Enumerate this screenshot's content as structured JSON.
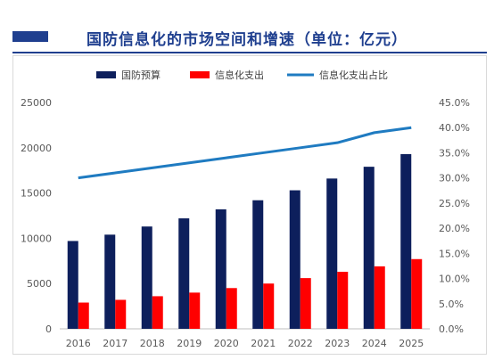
{
  "page": {
    "title": "国防信息化的市场空间和增速（单位：亿元）"
  },
  "colors": {
    "accent": "#1f3f8f",
    "budget_bar": "#0d1f5c",
    "it_bar": "#ff0000",
    "ratio_line": "#1f7bc1"
  },
  "chart_data": {
    "type": "bar",
    "title": "国防信息化的市场空间和增速（单位：亿元）",
    "categories": [
      "2016",
      "2017",
      "2018",
      "2019",
      "2020",
      "2021",
      "2022",
      "2023",
      "2024",
      "2025"
    ],
    "series": [
      {
        "name": "国防预算",
        "type": "bar",
        "axis": "left",
        "values": [
          9700,
          10400,
          11300,
          12200,
          13200,
          14200,
          15300,
          16600,
          17900,
          19300
        ]
      },
      {
        "name": "信息化支出",
        "type": "bar",
        "axis": "left",
        "values": [
          2900,
          3200,
          3600,
          4000,
          4500,
          5000,
          5600,
          6300,
          6900,
          7700
        ]
      },
      {
        "name": "信息化支出占比",
        "type": "line",
        "axis": "right",
        "values": [
          0.3,
          0.31,
          0.32,
          0.33,
          0.34,
          0.35,
          0.36,
          0.37,
          0.39,
          0.4
        ]
      }
    ],
    "left_axis": {
      "ylim": [
        0,
        25000
      ],
      "ticks": [
        "0",
        "5000",
        "10000",
        "15000",
        "20000",
        "25000"
      ]
    },
    "right_axis": {
      "ylim": [
        0,
        0.45
      ],
      "ticks": [
        "0.0%",
        "5.0%",
        "10.0%",
        "15.0%",
        "20.0%",
        "25.0%",
        "30.0%",
        "35.0%",
        "40.0%",
        "45.0%"
      ]
    },
    "legend": {
      "position": "top"
    },
    "grid": false
  }
}
